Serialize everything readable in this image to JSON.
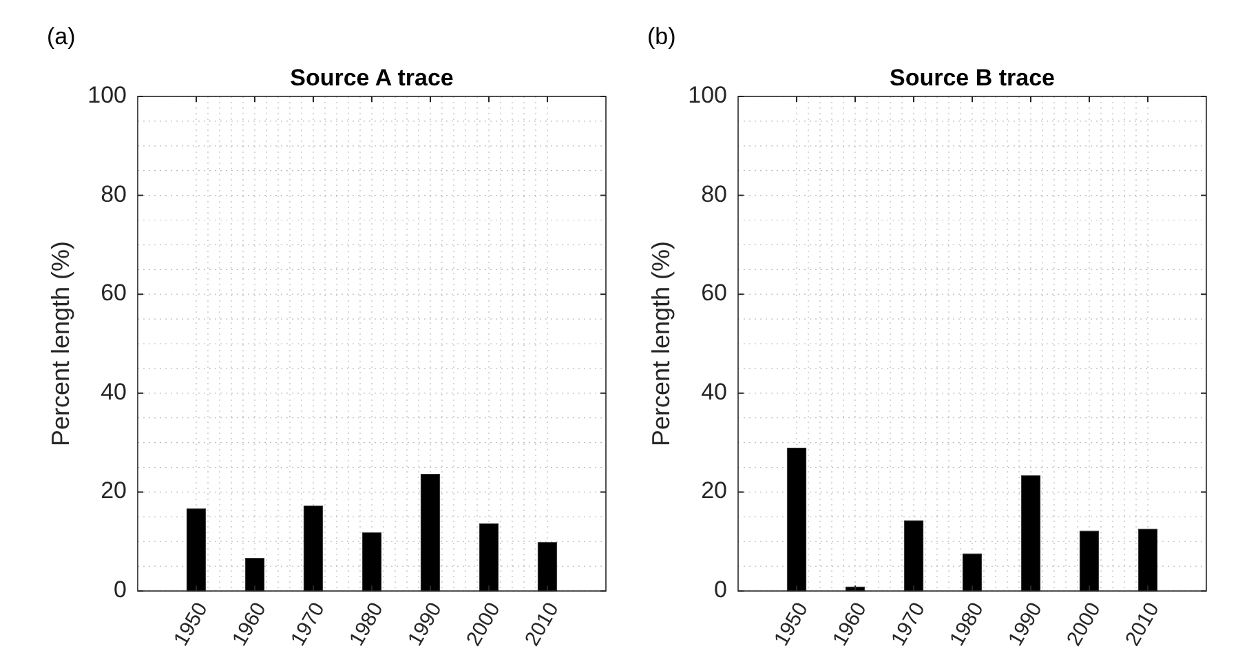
{
  "chart_data": [
    {
      "type": "bar",
      "title": "Source A trace",
      "ylabel": "Percent length (%)",
      "annotations": [
        "(a)"
      ],
      "x": [
        1950,
        1960,
        1970,
        1980,
        1990,
        2000,
        2010
      ],
      "values": [
        16.6,
        6.6,
        17.2,
        11.8,
        23.6,
        13.6,
        9.8
      ],
      "color": "#000000",
      "xlim": [
        1940,
        2020
      ],
      "xticks": [
        1950,
        1960,
        1970,
        1980,
        1990,
        2000,
        2010
      ],
      "ylim": [
        0,
        100
      ],
      "yticks": [
        0,
        20,
        40,
        60,
        80,
        100
      ],
      "grid": true
    },
    {
      "type": "bar",
      "title": "Source B trace",
      "ylabel": "Percent length (%)",
      "annotations": [
        "(b)"
      ],
      "x": [
        1950,
        1960,
        1970,
        1980,
        1990,
        2000,
        2010
      ],
      "values": [
        28.9,
        0.8,
        14.2,
        7.5,
        23.3,
        12.1,
        12.5
      ],
      "color": "#000000",
      "xlim": [
        1940,
        2020
      ],
      "xticks": [
        1950,
        1960,
        1970,
        1980,
        1990,
        2000,
        2010
      ],
      "ylim": [
        0,
        100
      ],
      "yticks": [
        0,
        20,
        40,
        60,
        80,
        100
      ],
      "grid": true
    }
  ]
}
